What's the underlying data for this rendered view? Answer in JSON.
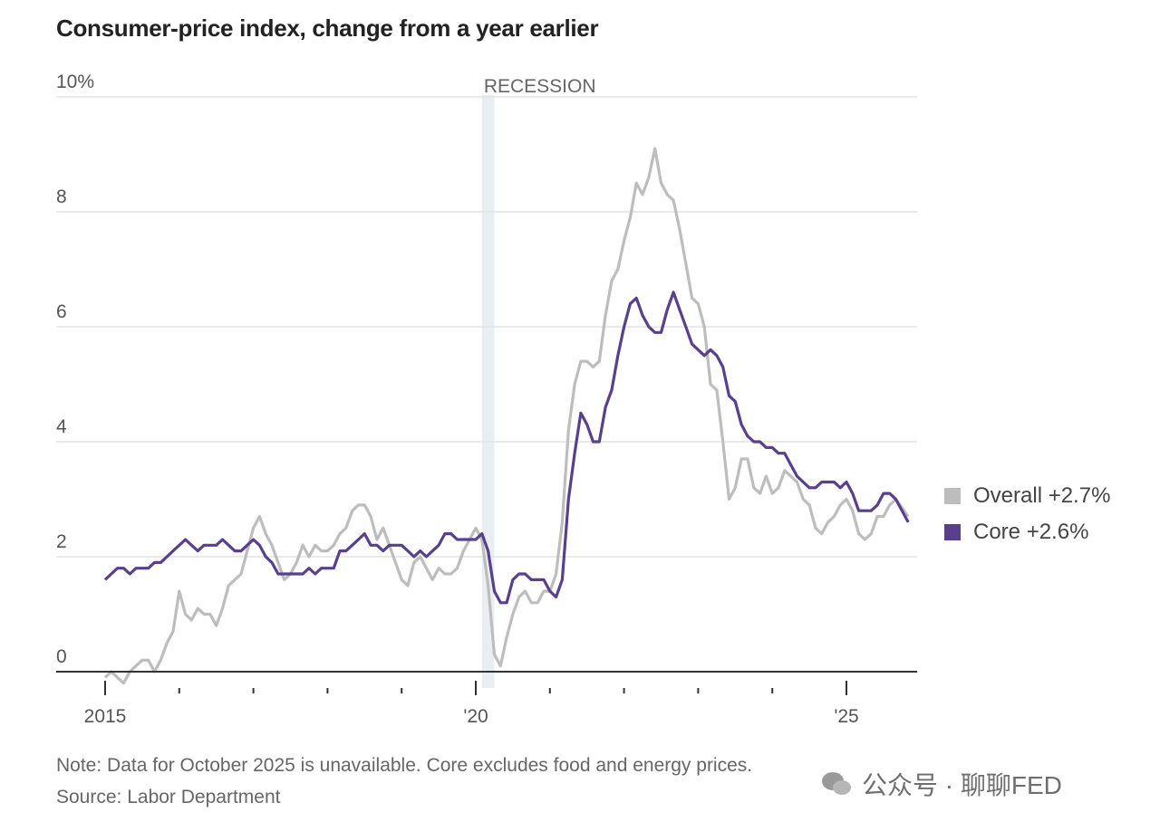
{
  "chart_data": {
    "type": "line",
    "title": "Consumer-price index, change from a year earlier",
    "x_start": "2015-01",
    "x_frequency": "monthly",
    "x_ticks": [
      "2015",
      "'20",
      "'25"
    ],
    "y_ticks": [
      "0",
      "2",
      "4",
      "6",
      "8",
      "10%"
    ],
    "ylim": [
      -0.3,
      10
    ],
    "grid": true,
    "shaded_region": {
      "label": "RECESSION",
      "from": "2020-02",
      "to": "2020-04",
      "color": "#e9eef3"
    },
    "legend_position": "right",
    "series": [
      {
        "name": "Overall",
        "legend_label": "Overall +2.7%",
        "color": "#bdbdbd",
        "values": [
          -0.1,
          0.0,
          -0.1,
          -0.2,
          0.0,
          0.1,
          0.2,
          0.2,
          0.0,
          0.2,
          0.5,
          0.7,
          1.4,
          1.0,
          0.9,
          1.1,
          1.0,
          1.0,
          0.8,
          1.1,
          1.5,
          1.6,
          1.7,
          2.1,
          2.5,
          2.7,
          2.4,
          2.2,
          1.9,
          1.6,
          1.7,
          1.9,
          2.2,
          2.0,
          2.2,
          2.1,
          2.1,
          2.2,
          2.4,
          2.5,
          2.8,
          2.9,
          2.9,
          2.7,
          2.3,
          2.5,
          2.2,
          1.9,
          1.6,
          1.5,
          1.9,
          2.0,
          1.8,
          1.6,
          1.8,
          1.7,
          1.7,
          1.8,
          2.1,
          2.3,
          2.5,
          2.3,
          1.5,
          0.3,
          0.1,
          0.6,
          1.0,
          1.3,
          1.4,
          1.2,
          1.2,
          1.4,
          1.4,
          1.7,
          2.6,
          4.2,
          5.0,
          5.4,
          5.4,
          5.3,
          5.4,
          6.2,
          6.8,
          7.0,
          7.5,
          7.9,
          8.5,
          8.3,
          8.6,
          9.1,
          8.5,
          8.3,
          8.2,
          7.7,
          7.1,
          6.5,
          6.4,
          6.0,
          5.0,
          4.9,
          4.0,
          3.0,
          3.2,
          3.7,
          3.7,
          3.2,
          3.1,
          3.4,
          3.1,
          3.2,
          3.5,
          3.4,
          3.3,
          3.0,
          2.9,
          2.5,
          2.4,
          2.6,
          2.7,
          2.9,
          3.0,
          2.8,
          2.4,
          2.3,
          2.4,
          2.7,
          2.7,
          2.9,
          3.0,
          null,
          2.7
        ]
      },
      {
        "name": "Core",
        "legend_label": "Core +2.6%",
        "color": "#58408c",
        "values": [
          1.6,
          1.7,
          1.8,
          1.8,
          1.7,
          1.8,
          1.8,
          1.8,
          1.9,
          1.9,
          2.0,
          2.1,
          2.2,
          2.3,
          2.2,
          2.1,
          2.2,
          2.2,
          2.2,
          2.3,
          2.2,
          2.1,
          2.1,
          2.2,
          2.3,
          2.2,
          2.0,
          1.9,
          1.7,
          1.7,
          1.7,
          1.7,
          1.7,
          1.8,
          1.7,
          1.8,
          1.8,
          1.8,
          2.1,
          2.1,
          2.2,
          2.3,
          2.4,
          2.2,
          2.2,
          2.1,
          2.2,
          2.2,
          2.2,
          2.1,
          2.0,
          2.1,
          2.0,
          2.1,
          2.2,
          2.4,
          2.4,
          2.3,
          2.3,
          2.3,
          2.3,
          2.4,
          2.1,
          1.4,
          1.2,
          1.2,
          1.6,
          1.7,
          1.7,
          1.6,
          1.6,
          1.6,
          1.4,
          1.3,
          1.6,
          3.0,
          3.8,
          4.5,
          4.3,
          4.0,
          4.0,
          4.6,
          4.9,
          5.5,
          6.0,
          6.4,
          6.5,
          6.2,
          6.0,
          5.9,
          5.9,
          6.3,
          6.6,
          6.3,
          6.0,
          5.7,
          5.6,
          5.5,
          5.6,
          5.5,
          5.3,
          4.8,
          4.7,
          4.3,
          4.1,
          4.0,
          4.0,
          3.9,
          3.9,
          3.8,
          3.8,
          3.6,
          3.4,
          3.3,
          3.2,
          3.2,
          3.3,
          3.3,
          3.3,
          3.2,
          3.3,
          3.1,
          2.8,
          2.8,
          2.8,
          2.9,
          3.1,
          3.1,
          3.0,
          null,
          2.6
        ]
      }
    ]
  },
  "notes": {
    "note": "Note: Data for October 2025 is unavailable. Core excludes food and energy prices.",
    "source": "Source: Labor Department"
  },
  "watermark": {
    "text": "公众号 · 聊聊FED"
  }
}
